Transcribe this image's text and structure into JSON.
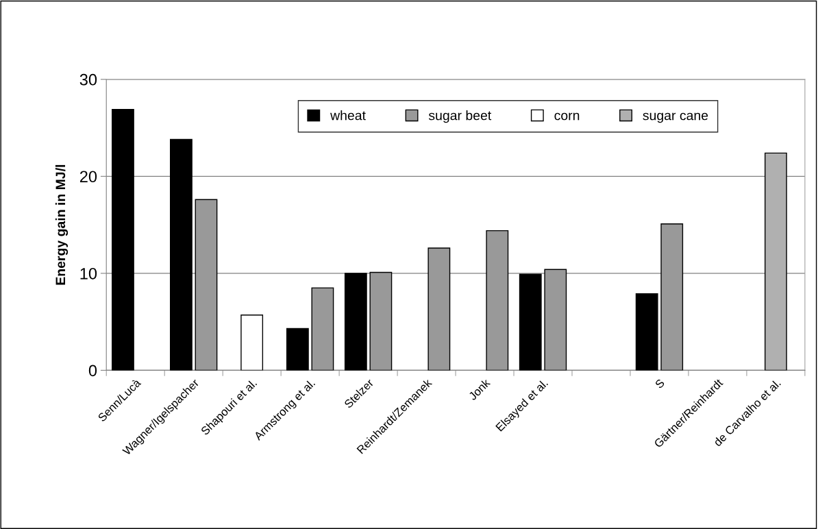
{
  "chart_data": {
    "type": "bar",
    "ylabel": "Energy gain in MJ/l",
    "categories": [
      "Senn/Lucà",
      "Wagner/Igelspacher",
      "Shapouri et al.",
      "Armstrong et al.",
      "Stelzer",
      "Reinhardt/Zemanek",
      "Jonk",
      "Elsayed et al.",
      null,
      "S",
      "Gärtner/Reinhardt",
      "de Carvalho et al."
    ],
    "series": [
      {
        "name": "wheat",
        "color": "#000000",
        "values": [
          26.9,
          23.8,
          null,
          4.3,
          10.0,
          null,
          null,
          9.9,
          null,
          7.9,
          null,
          null
        ]
      },
      {
        "name": "sugar beet",
        "color": "#999999",
        "values": [
          null,
          17.6,
          null,
          8.5,
          10.1,
          12.6,
          14.4,
          10.4,
          null,
          15.1,
          null,
          null
        ]
      },
      {
        "name": "corn",
        "color": "#ffffff",
        "values": [
          null,
          null,
          5.7,
          null,
          null,
          null,
          null,
          null,
          null,
          null,
          null,
          null
        ]
      },
      {
        "name": "sugar cane",
        "color": "#b0b0b0",
        "values": [
          null,
          null,
          null,
          null,
          null,
          null,
          null,
          null,
          null,
          null,
          null,
          22.4
        ]
      }
    ],
    "ylim": [
      0,
      30
    ],
    "yticks": [
      0,
      10,
      20,
      30
    ],
    "grid": "y",
    "legend": "top"
  }
}
